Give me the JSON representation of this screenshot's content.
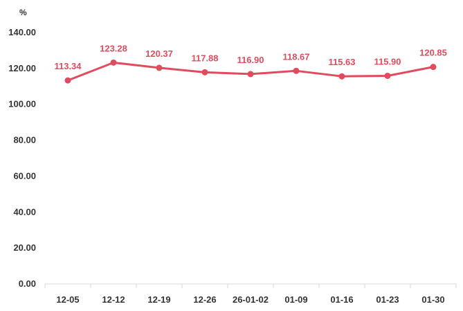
{
  "chart_data": {
    "type": "line",
    "title": "",
    "ylabel": "%",
    "xlabel": "",
    "ylim": [
      0,
      140
    ],
    "yticks": [
      "0.00",
      "20.00",
      "40.00",
      "60.00",
      "80.00",
      "100.00",
      "120.00",
      "140.00"
    ],
    "ytick_values": [
      0,
      20,
      40,
      60,
      80,
      100,
      120,
      140
    ],
    "categories": [
      "12-05",
      "12-12",
      "12-19",
      "12-26",
      "26-01-02",
      "01-09",
      "01-16",
      "01-23",
      "01-30"
    ],
    "series": [
      {
        "values": [
          113.34,
          123.28,
          120.37,
          117.88,
          116.9,
          118.67,
          115.63,
          115.9,
          120.85
        ],
        "labels": [
          "113.34",
          "123.28",
          "120.37",
          "117.88",
          "116.90",
          "118.67",
          "115.63",
          "115.90",
          "120.85"
        ],
        "color": "#e04b5e"
      }
    ],
    "grid": false,
    "legend": "none"
  }
}
